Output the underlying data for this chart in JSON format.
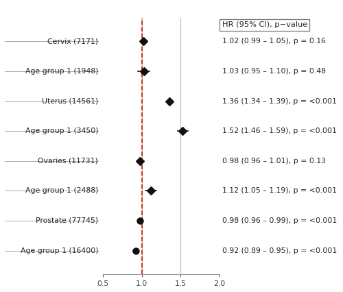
{
  "rows": [
    {
      "label": "Cervix (7171)",
      "hr": 1.02,
      "ci_lo": 0.99,
      "ci_hi": 1.05,
      "pval": "0.16",
      "marker": "diamond",
      "y": 8
    },
    {
      "label": "Age group 1 (1948)",
      "hr": 1.03,
      "ci_lo": 0.95,
      "ci_hi": 1.1,
      "pval": "0.48",
      "marker": "diamond",
      "y": 7
    },
    {
      "label": "Uterus (14561)",
      "hr": 1.36,
      "ci_lo": 1.34,
      "ci_hi": 1.39,
      "pval": "<0.001",
      "marker": "diamond",
      "y": 6
    },
    {
      "label": "Age group 1 (3450)",
      "hr": 1.52,
      "ci_lo": 1.46,
      "ci_hi": 1.59,
      "pval": "<0.001",
      "marker": "diamond",
      "y": 5
    },
    {
      "label": "Ovaries (11731)",
      "hr": 0.98,
      "ci_lo": 0.96,
      "ci_hi": 1.01,
      "pval": "0.13",
      "marker": "diamond",
      "y": 4
    },
    {
      "label": "Age group 1 (2488)",
      "hr": 1.12,
      "ci_lo": 1.05,
      "ci_hi": 1.19,
      "pval": "<0.001",
      "marker": "diamond",
      "y": 3
    },
    {
      "label": "Prostate (77745)",
      "hr": 0.98,
      "ci_lo": 0.96,
      "ci_hi": 0.99,
      "pval": "<0.001",
      "marker": "circle",
      "y": 2
    },
    {
      "label": "Age group 1 (16400)",
      "hr": 0.92,
      "ci_lo": 0.89,
      "ci_hi": 0.95,
      "pval": "<0.001",
      "marker": "circle",
      "y": 1
    }
  ],
  "xlim": [
    0.5,
    2.0
  ],
  "xticks": [
    0.5,
    1.0,
    1.5,
    2.0
  ],
  "vlines": [
    1.0,
    1.5
  ],
  "dashed_line": 1.0,
  "legend_title": "HR (95% CI), p−value",
  "marker_color": "#111111",
  "ci_color": "#111111",
  "dashed_color": "#cc2200",
  "vline_color": "#bbbbbb",
  "background_color": "#ffffff",
  "fontsize": 7.8,
  "legend_fontsize": 8.2,
  "label_fontsize": 7.8
}
